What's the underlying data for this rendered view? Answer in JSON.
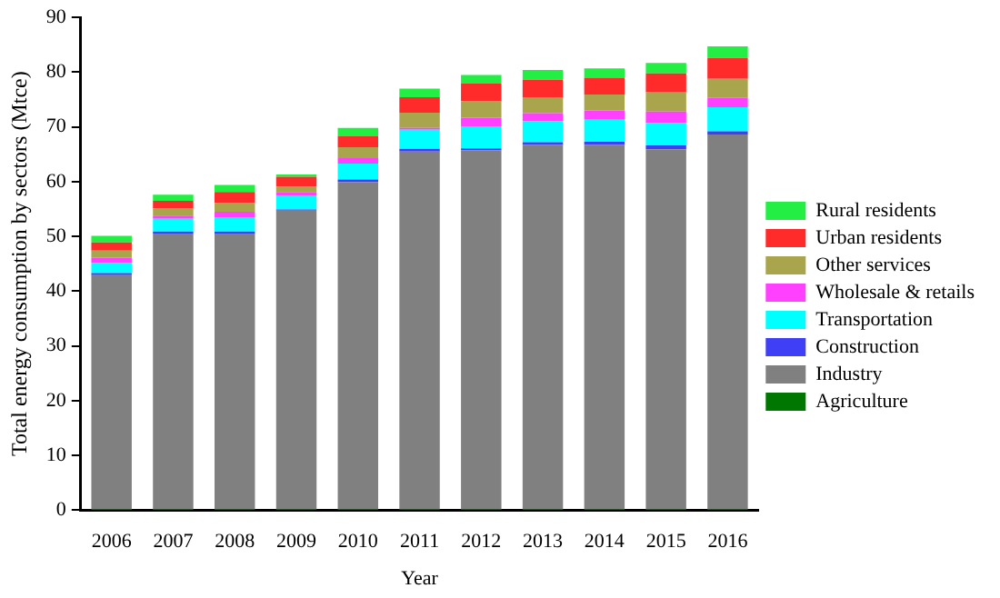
{
  "chart_data": {
    "type": "bar",
    "stacked": true,
    "xlabel": "Year",
    "ylabel": "Total energy consumption by sectors (Mtce)",
    "categories": [
      "2006",
      "2007",
      "2008",
      "2009",
      "2010",
      "2011",
      "2012",
      "2013",
      "2014",
      "2015",
      "2016"
    ],
    "ylim": [
      0,
      90
    ],
    "yticks": [
      0,
      10,
      20,
      30,
      40,
      50,
      60,
      70,
      80,
      90
    ],
    "grid": false,
    "legend": "right",
    "series": [
      {
        "name": "Agriculture",
        "color": "#007700",
        "values": [
          0.1,
          0.1,
          0.1,
          0.1,
          0.1,
          0.1,
          0.1,
          0.1,
          0.1,
          0.1,
          0.1
        ]
      },
      {
        "name": "Industry",
        "color": "#808080",
        "values": [
          42.8,
          50.4,
          50.4,
          54.6,
          59.8,
          65.4,
          65.6,
          66.6,
          66.6,
          65.8,
          68.5
        ]
      },
      {
        "name": "Construction",
        "color": "#3f3ff5",
        "values": [
          0.4,
          0.4,
          0.4,
          0.2,
          0.5,
          0.5,
          0.4,
          0.5,
          0.6,
          0.7,
          0.6
        ]
      },
      {
        "name": "Transportation",
        "color": "#00ffff",
        "values": [
          1.8,
          2.3,
          2.6,
          2.6,
          2.9,
          3.5,
          4.0,
          3.8,
          4.0,
          4.1,
          4.4
        ]
      },
      {
        "name": "Wholesale & retails",
        "color": "#ff40ff",
        "values": [
          1.0,
          0.6,
          1.0,
          0.6,
          1.0,
          0.3,
          1.6,
          1.5,
          1.7,
          2.1,
          1.7
        ]
      },
      {
        "name": "Other services",
        "color": "#a9a54c",
        "values": [
          1.3,
          1.3,
          1.6,
          1.0,
          2.0,
          2.8,
          3.0,
          2.9,
          2.9,
          3.6,
          3.5
        ]
      },
      {
        "name": "Urban residents",
        "color": "#ff2a2a",
        "values": [
          1.5,
          1.4,
          2.0,
          1.8,
          2.0,
          2.8,
          3.2,
          3.2,
          3.1,
          3.4,
          3.8
        ]
      },
      {
        "name": "Rural residents",
        "color": "#22ee44",
        "values": [
          1.2,
          1.1,
          1.3,
          0.4,
          1.5,
          1.6,
          1.6,
          1.8,
          1.7,
          1.9,
          2.1
        ]
      }
    ]
  }
}
